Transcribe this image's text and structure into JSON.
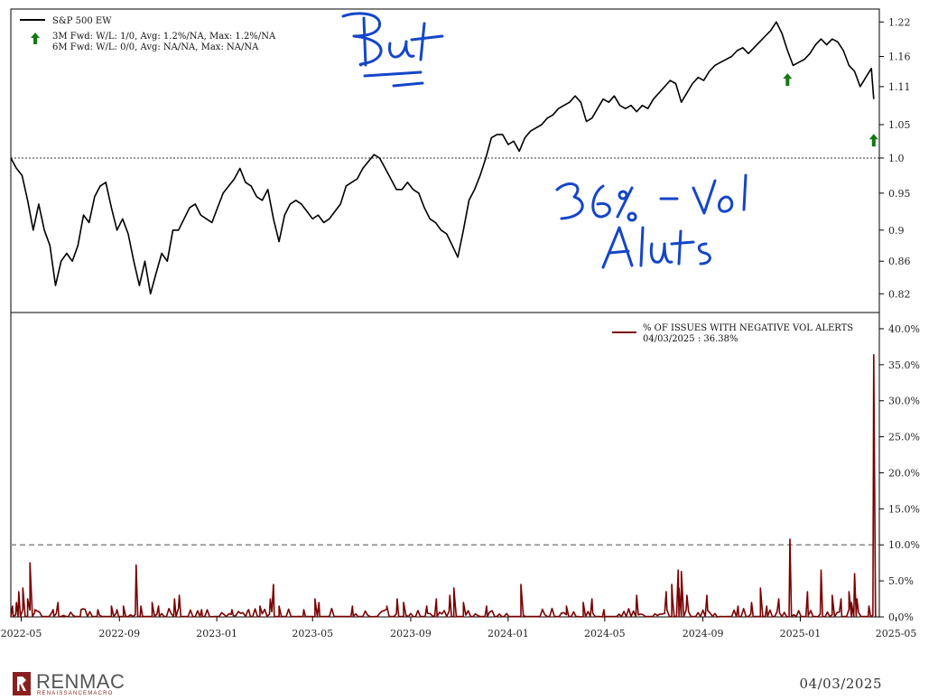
{
  "chart_data": [
    {
      "type": "line",
      "legend": {
        "series_name": "S&P 500 EW",
        "line1": "3M Fwd: W/L: 1/0, Avg: 1.2%/NA, Max: 1.2%/NA",
        "line2": "6M Fwd: W/L: 0/0, Avg: NA/NA, Max: NA/NA",
        "placement": "top-left"
      },
      "yscale": "log",
      "ylim": [
        0.8,
        1.24
      ],
      "yticks": [
        "1.22",
        "1.16",
        "1.11",
        "1.05",
        "1.0",
        "0.95",
        "0.9",
        "0.86",
        "0.82"
      ],
      "ytick_values": [
        1.22,
        1.16,
        1.11,
        1.05,
        1.0,
        0.95,
        0.9,
        0.86,
        0.82
      ],
      "reference_line": 1.0,
      "series": [
        {
          "name": "S&P 500 EW",
          "x": [
            "2022-04-18",
            "2022-04-25",
            "2022-05-02",
            "2022-05-09",
            "2022-05-16",
            "2022-05-23",
            "2022-05-30",
            "2022-06-06",
            "2022-06-13",
            "2022-06-20",
            "2022-06-27",
            "2022-07-04",
            "2022-07-11",
            "2022-07-18",
            "2022-07-25",
            "2022-08-01",
            "2022-08-08",
            "2022-08-15",
            "2022-08-22",
            "2022-08-29",
            "2022-09-05",
            "2022-09-12",
            "2022-09-19",
            "2022-09-26",
            "2022-10-03",
            "2022-10-10",
            "2022-10-17",
            "2022-10-24",
            "2022-10-31",
            "2022-11-07",
            "2022-11-14",
            "2022-11-21",
            "2022-11-28",
            "2022-12-05",
            "2022-12-12",
            "2022-12-19",
            "2022-12-26",
            "2023-01-02",
            "2023-01-09",
            "2023-01-16",
            "2023-01-23",
            "2023-01-30",
            "2023-02-06",
            "2023-02-13",
            "2023-02-20",
            "2023-02-27",
            "2023-03-06",
            "2023-03-13",
            "2023-03-20",
            "2023-03-27",
            "2023-04-03",
            "2023-04-10",
            "2023-04-17",
            "2023-04-24",
            "2023-05-01",
            "2023-05-08",
            "2023-05-15",
            "2023-05-22",
            "2023-05-29",
            "2023-06-05",
            "2023-06-12",
            "2023-06-19",
            "2023-06-26",
            "2023-07-03",
            "2023-07-10",
            "2023-07-17",
            "2023-07-24",
            "2023-07-31",
            "2023-08-07",
            "2023-08-14",
            "2023-08-21",
            "2023-08-28",
            "2023-09-04",
            "2023-09-11",
            "2023-09-18",
            "2023-09-25",
            "2023-10-02",
            "2023-10-09",
            "2023-10-16",
            "2023-10-23",
            "2023-10-30",
            "2023-11-06",
            "2023-11-13",
            "2023-11-20",
            "2023-11-27",
            "2023-12-04",
            "2023-12-11",
            "2023-12-18",
            "2023-12-25",
            "2024-01-01",
            "2024-01-08",
            "2024-01-15",
            "2024-01-22",
            "2024-01-29",
            "2024-02-05",
            "2024-02-12",
            "2024-02-19",
            "2024-02-26",
            "2024-03-04",
            "2024-03-11",
            "2024-03-18",
            "2024-03-25",
            "2024-04-01",
            "2024-04-08",
            "2024-04-15",
            "2024-04-22",
            "2024-04-29",
            "2024-05-06",
            "2024-05-13",
            "2024-05-20",
            "2024-05-27",
            "2024-06-03",
            "2024-06-10",
            "2024-06-17",
            "2024-06-24",
            "2024-07-01",
            "2024-07-08",
            "2024-07-15",
            "2024-07-22",
            "2024-07-29",
            "2024-08-05",
            "2024-08-12",
            "2024-08-19",
            "2024-08-26",
            "2024-09-02",
            "2024-09-09",
            "2024-09-16",
            "2024-09-23",
            "2024-09-30",
            "2024-10-07",
            "2024-10-14",
            "2024-10-21",
            "2024-10-28",
            "2024-11-04",
            "2024-11-11",
            "2024-11-18",
            "2024-11-25",
            "2024-12-02",
            "2024-12-09",
            "2024-12-16",
            "2024-12-23",
            "2024-12-30",
            "2025-01-06",
            "2025-01-13",
            "2025-01-20",
            "2025-01-27",
            "2025-02-03",
            "2025-02-10",
            "2025-02-17",
            "2025-02-24",
            "2025-03-03",
            "2025-03-10",
            "2025-03-17",
            "2025-03-24",
            "2025-03-31",
            "2025-04-03"
          ],
          "y": [
            1.0,
            0.985,
            0.975,
            0.94,
            0.9,
            0.935,
            0.9,
            0.88,
            0.83,
            0.86,
            0.87,
            0.86,
            0.88,
            0.92,
            0.91,
            0.945,
            0.96,
            0.965,
            0.93,
            0.9,
            0.915,
            0.895,
            0.86,
            0.83,
            0.86,
            0.82,
            0.845,
            0.87,
            0.86,
            0.9,
            0.9,
            0.915,
            0.93,
            0.935,
            0.92,
            0.915,
            0.91,
            0.93,
            0.95,
            0.96,
            0.97,
            0.985,
            0.965,
            0.96,
            0.945,
            0.94,
            0.955,
            0.915,
            0.885,
            0.92,
            0.935,
            0.94,
            0.935,
            0.925,
            0.915,
            0.92,
            0.91,
            0.915,
            0.925,
            0.935,
            0.96,
            0.965,
            0.97,
            0.985,
            0.995,
            1.005,
            1.0,
            0.985,
            0.97,
            0.955,
            0.955,
            0.965,
            0.955,
            0.95,
            0.93,
            0.915,
            0.91,
            0.9,
            0.895,
            0.88,
            0.865,
            0.9,
            0.94,
            0.955,
            0.975,
            1.0,
            1.03,
            1.035,
            1.035,
            1.02,
            1.025,
            1.01,
            1.03,
            1.04,
            1.045,
            1.05,
            1.06,
            1.065,
            1.075,
            1.08,
            1.085,
            1.095,
            1.085,
            1.055,
            1.06,
            1.075,
            1.09,
            1.085,
            1.095,
            1.08,
            1.075,
            1.08,
            1.07,
            1.08,
            1.075,
            1.09,
            1.1,
            1.11,
            1.12,
            1.115,
            1.085,
            1.1,
            1.115,
            1.125,
            1.12,
            1.135,
            1.145,
            1.15,
            1.155,
            1.16,
            1.17,
            1.175,
            1.165,
            1.175,
            1.185,
            1.195,
            1.205,
            1.22,
            1.2,
            1.17,
            1.145,
            1.15,
            1.155,
            1.165,
            1.18,
            1.19,
            1.18,
            1.19,
            1.185,
            1.17,
            1.145,
            1.135,
            1.11,
            1.125,
            1.14,
            1.09
          ]
        }
      ],
      "markers": [
        {
          "date": "2024-12-16",
          "value": 1.12,
          "symbol": "up-arrow",
          "color": "#117a11"
        },
        {
          "date": "2025-04-03",
          "value": 1.025,
          "symbol": "up-arrow",
          "color": "#117a11"
        }
      ],
      "colors": {
        "line": "#000000",
        "arrow": "#117a11"
      }
    },
    {
      "type": "line",
      "legend": {
        "series_name": "% OF ISSUES WITH NEGATIVE VOL ALERTS",
        "line2": "04/03/2025 : 36.38%",
        "placement": "top-right"
      },
      "ylim": [
        0,
        42
      ],
      "yticks": [
        "40.0%",
        "35.0%",
        "30.0%",
        "25.0%",
        "20.0%",
        "15.0%",
        "10.0%",
        "5.0%",
        "0.0%"
      ],
      "ytick_values": [
        40,
        35,
        30,
        25,
        20,
        15,
        10,
        5,
        0
      ],
      "reference_line": 10,
      "xlim": [
        "2022-04-18",
        "2025-04-10"
      ],
      "xticks": [
        "2022-05",
        "2022-09",
        "2023-01",
        "2023-05",
        "2023-09",
        "2024-01",
        "2024-05",
        "2024-09",
        "2025-01",
        "2025-05"
      ],
      "xtick_dates": [
        "2022-05-01",
        "2022-09-01",
        "2023-01-01",
        "2023-05-01",
        "2023-09-01",
        "2024-01-01",
        "2024-05-01",
        "2024-09-01",
        "2025-01-01",
        "2025-05-01"
      ],
      "series": [
        {
          "name": "% OF ISSUES WITH NEGATIVE VOL ALERTS",
          "x": [
            "2022-04-20",
            "2022-04-25",
            "2022-04-28",
            "2022-05-03",
            "2022-05-09",
            "2022-05-12",
            "2022-05-18",
            "2022-06-10",
            "2022-06-16",
            "2022-07-15",
            "2022-08-05",
            "2022-08-22",
            "2022-08-29",
            "2022-09-06",
            "2022-09-22",
            "2022-09-28",
            "2022-10-12",
            "2022-10-20",
            "2022-11-09",
            "2022-11-15",
            "2022-12-13",
            "2023-01-20",
            "2023-02-10",
            "2023-02-24",
            "2023-03-09",
            "2023-03-13",
            "2023-03-20",
            "2023-04-20",
            "2023-05-04",
            "2023-05-09",
            "2023-06-20",
            "2023-08-02",
            "2023-08-15",
            "2023-08-23",
            "2023-09-21",
            "2023-10-03",
            "2023-10-20",
            "2023-10-25",
            "2023-11-06",
            "2023-12-05",
            "2024-01-17",
            "2024-02-13",
            "2024-03-14",
            "2024-04-04",
            "2024-04-15",
            "2024-04-30",
            "2024-06-10",
            "2024-07-17",
            "2024-07-24",
            "2024-07-25",
            "2024-08-01",
            "2024-08-02",
            "2024-08-05",
            "2024-08-12",
            "2024-09-06",
            "2024-10-15",
            "2024-11-01",
            "2024-11-12",
            "2024-11-20",
            "2024-12-05",
            "2024-12-18",
            "2024-12-19",
            "2025-01-10",
            "2025-01-27",
            "2025-02-10",
            "2025-02-21",
            "2025-03-03",
            "2025-03-06",
            "2025-03-10",
            "2025-03-13",
            "2025-03-28",
            "2025-04-03"
          ],
          "y": [
            1.5,
            2.0,
            3.5,
            4.0,
            2.5,
            7.5,
            1.0,
            1.0,
            2.0,
            1.0,
            1.0,
            1.5,
            1.0,
            1.5,
            7.2,
            1.5,
            2.0,
            1.5,
            2.5,
            3.0,
            1.0,
            1.0,
            1.0,
            1.5,
            2.5,
            4.5,
            1.5,
            1.0,
            2.5,
            2.0,
            1.5,
            1.5,
            2.5,
            2.0,
            1.5,
            2.5,
            3.0,
            4.0,
            2.0,
            1.5,
            4.5,
            1.0,
            1.5,
            2.0,
            2.5,
            1.0,
            3.0,
            3.5,
            4.5,
            2.5,
            6.5,
            4.0,
            6.3,
            3.0,
            3.0,
            1.5,
            2.0,
            4.0,
            1.5,
            2.5,
            1.0,
            10.8,
            3.5,
            6.5,
            3.0,
            2.5,
            3.5,
            2.0,
            6.0,
            2.5,
            1.5,
            36.38
          ]
        }
      ],
      "colors": {
        "line": "#7a0000"
      }
    }
  ],
  "footer": {
    "logo_text": "RENMAC",
    "logo_sub": "RENAISSANCEMACRO",
    "date": "04/03/2025"
  }
}
